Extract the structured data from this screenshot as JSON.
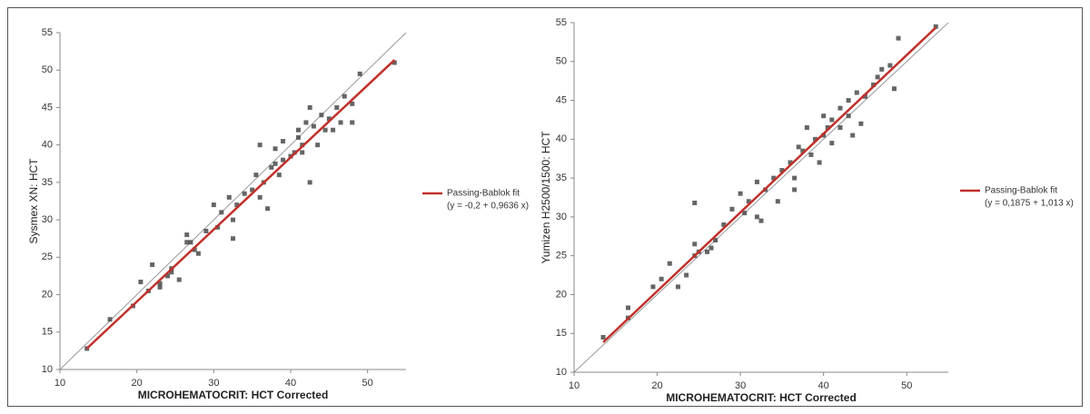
{
  "chart_data": [
    {
      "type": "scatter",
      "xlabel": "MICROHEMATOCRIT: HCT Corrected",
      "ylabel": "Sysmex XN: HCT",
      "xlim": [
        10,
        55
      ],
      "ylim": [
        10,
        55
      ],
      "xticks": [
        10,
        20,
        30,
        40,
        50
      ],
      "yticks": [
        10,
        15,
        20,
        25,
        30,
        35,
        40,
        45,
        50,
        55
      ],
      "points": {
        "color": "#4a4a4a",
        "x": [
          13.5,
          16.5,
          19.5,
          20.5,
          21.5,
          22,
          23,
          23,
          24,
          24.5,
          25.5,
          26.5,
          26.5,
          27,
          28,
          29,
          30,
          30.5,
          31,
          32,
          32.5,
          33,
          34,
          35,
          35.5,
          36,
          36.5,
          37,
          37.5,
          38,
          38,
          38.5,
          39,
          39,
          40,
          40.5,
          41,
          41,
          41.5,
          42,
          42.5,
          43,
          43.5,
          44,
          44.5,
          45,
          45.5,
          46,
          46.5,
          47,
          48,
          48,
          49,
          53.5,
          36,
          32.5,
          42.5,
          41.5,
          27.5,
          24.5
        ],
        "y": [
          12.8,
          16.7,
          18.5,
          21.7,
          20.5,
          24,
          21.5,
          21,
          22.5,
          23.5,
          22,
          27,
          28,
          27,
          25.5,
          28.5,
          32,
          29,
          31,
          33,
          27.5,
          32,
          33.5,
          34,
          36,
          40,
          35,
          31.5,
          37,
          39.5,
          37.5,
          36,
          38,
          40.5,
          38.5,
          39,
          41,
          42,
          40,
          43,
          35,
          42.5,
          40,
          44,
          42,
          43.5,
          42,
          45,
          43,
          46.5,
          43,
          45.5,
          49.5,
          51,
          33,
          30,
          45,
          39,
          26,
          23
        ]
      },
      "fit": {
        "name": "Passing-Bablok fit",
        "equation": "(y = -0,2 + 0,9636 x)",
        "color": "#c0302a",
        "x": [
          13.5,
          53.5
        ],
        "y": [
          12.81,
          51.35
        ]
      },
      "reference_line": {
        "color": "#999999",
        "x": [
          10,
          55
        ],
        "y": [
          10,
          55
        ]
      }
    },
    {
      "type": "scatter",
      "xlabel": "MICROHEMATOCRIT: HCT Corrected",
      "ylabel": "Yumizen H2500/1500: HCT",
      "xlim": [
        10,
        55
      ],
      "ylim": [
        10,
        55
      ],
      "xticks": [
        10,
        20,
        30,
        40,
        50
      ],
      "yticks": [
        10,
        15,
        20,
        25,
        30,
        35,
        40,
        45,
        50,
        55
      ],
      "points": {
        "color": "#4a4a4a",
        "x": [
          13.5,
          16.5,
          16.5,
          19.5,
          20.5,
          21.5,
          22.5,
          23.5,
          24.5,
          24.5,
          25,
          26,
          26.5,
          27,
          28,
          29,
          30,
          30.5,
          31,
          32,
          32,
          33,
          34,
          34.5,
          35,
          36,
          36.5,
          37,
          37.5,
          38,
          38.5,
          39,
          39.5,
          40,
          40,
          41,
          41,
          42,
          42,
          43,
          43,
          44,
          44.5,
          45,
          46,
          46.5,
          47,
          48,
          48.5,
          49,
          53.5,
          24.5,
          32.5,
          36.5,
          43.5,
          40.5
        ],
        "y": [
          14.5,
          17,
          18.3,
          21,
          22,
          24,
          21,
          22.5,
          26.5,
          31.8,
          25.5,
          25.5,
          26,
          27,
          29,
          31,
          33,
          30.5,
          32,
          34.5,
          30,
          33.5,
          35,
          32,
          36,
          37,
          35,
          39,
          38.5,
          41.5,
          38,
          40,
          37,
          43,
          40.5,
          42.5,
          39.5,
          44,
          41.5,
          45,
          43,
          46,
          42,
          45.5,
          47,
          48,
          49,
          49.5,
          46.5,
          53,
          54.5,
          25,
          29.5,
          33.5,
          40.5,
          41.5
        ]
      },
      "fit": {
        "name": "Passing-Bablok fit",
        "equation": "(y = 0,1875 + 1,013 x)",
        "color": "#c0302a",
        "x": [
          13.5,
          53.5
        ],
        "y": [
          13.86,
          54.38
        ]
      },
      "reference_line": {
        "color": "#999999",
        "x": [
          10,
          55
        ],
        "y": [
          10,
          55
        ]
      }
    }
  ]
}
